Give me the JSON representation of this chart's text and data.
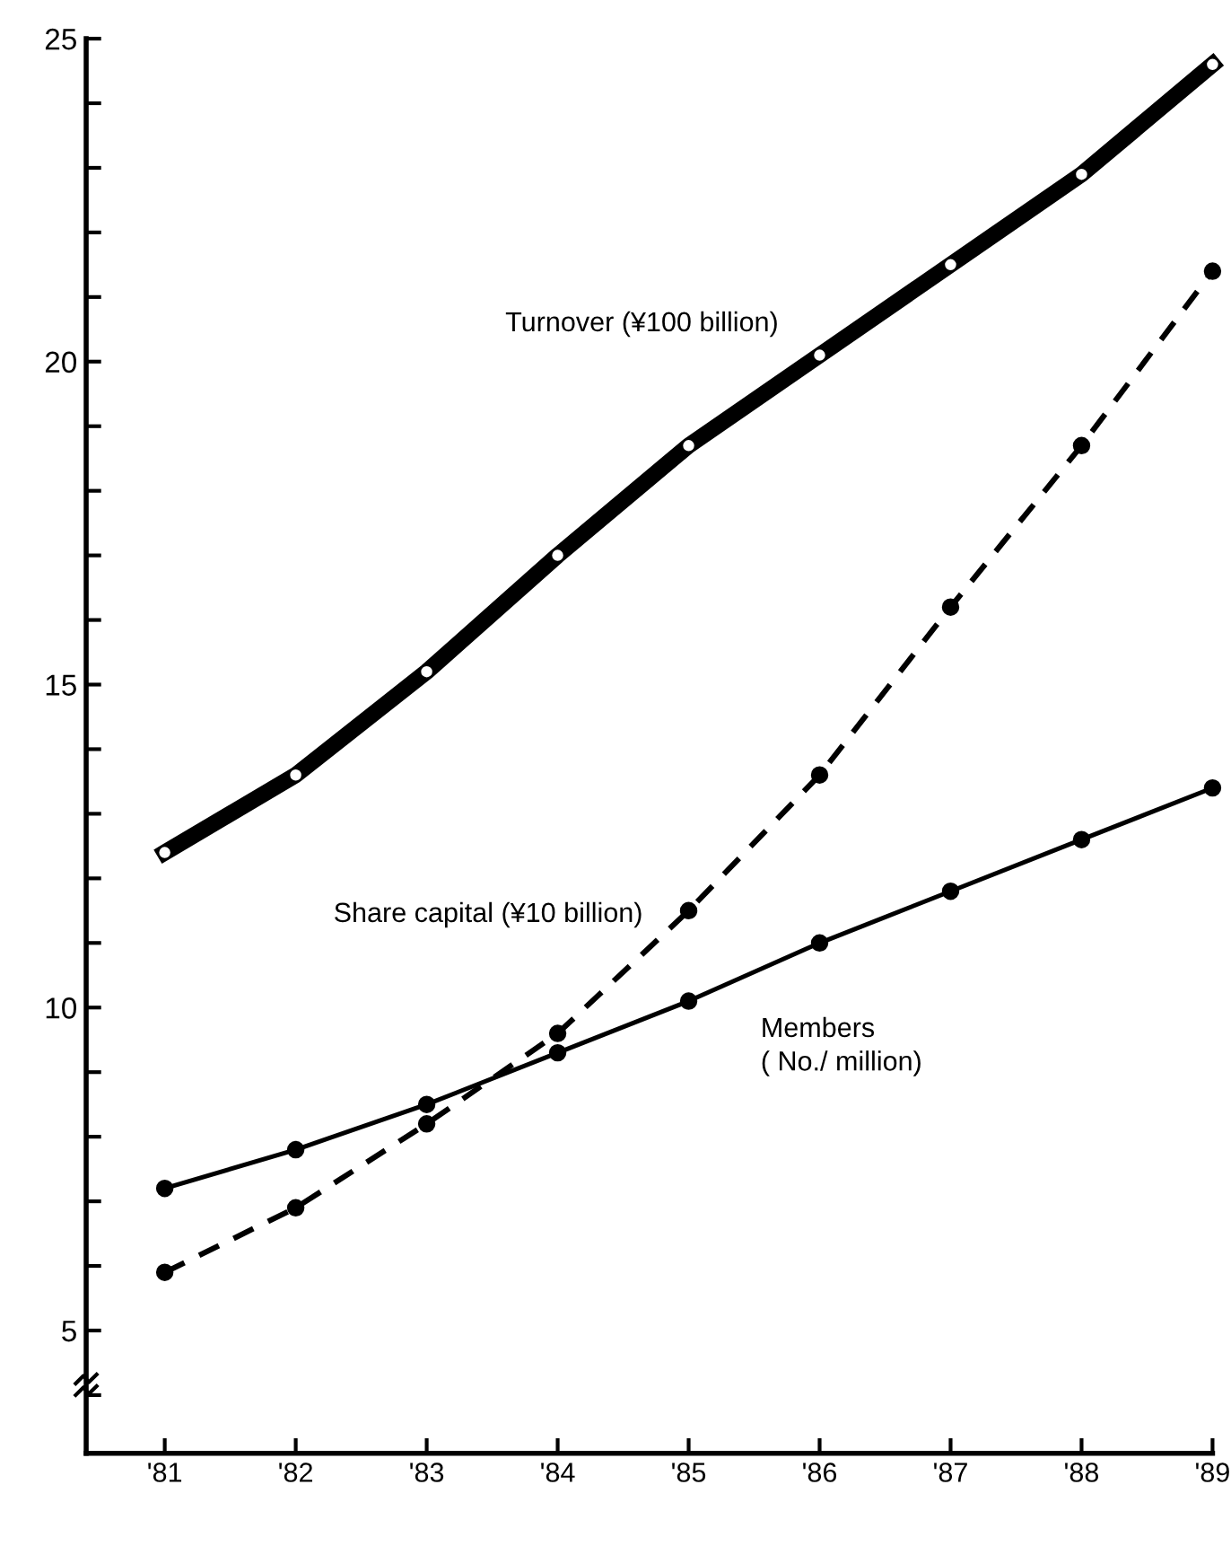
{
  "chart_data": {
    "type": "line",
    "categories": [
      "'81",
      "'82",
      "'83",
      "'84",
      "'85",
      "'86",
      "'87",
      "'88",
      "'89"
    ],
    "series": [
      {
        "name": "Turnover (¥100 billion)",
        "color": "#000000",
        "line_style": "solid",
        "marker": "circle",
        "values": [
          12.4,
          13.6,
          15.2,
          17.0,
          18.7,
          20.1,
          21.5,
          22.9,
          24.6
        ]
      },
      {
        "name": "Share capital (¥10 billion)",
        "color": "#000000",
        "line_style": "dashed",
        "marker": "circle",
        "values": [
          5.9,
          6.9,
          8.2,
          9.6,
          11.5,
          13.6,
          16.2,
          18.7,
          21.4
        ]
      },
      {
        "name": "Members\n( No./ million)",
        "color": "#000000",
        "line_style": "solid",
        "marker": "circle",
        "values": [
          7.2,
          7.8,
          8.5,
          9.3,
          10.1,
          11.0,
          11.8,
          12.6,
          13.4
        ]
      }
    ],
    "ylim": [
      3.1,
      25
    ],
    "yticks": [
      {
        "value": 4,
        "label": null
      },
      5,
      {
        "value": 6,
        "label": null
      },
      {
        "value": 7,
        "label": null
      },
      {
        "value": 8,
        "label": null
      },
      {
        "value": 9,
        "label": null
      },
      10,
      {
        "value": 11,
        "label": null
      },
      {
        "value": 12,
        "label": null
      },
      {
        "value": 13,
        "label": null
      },
      {
        "value": 14,
        "label": null
      },
      15,
      {
        "value": 16,
        "label": null
      },
      {
        "value": 17,
        "label": null
      },
      {
        "value": 18,
        "label": null
      },
      {
        "value": 19,
        "label": null
      },
      20,
      {
        "value": 21,
        "label": null
      },
      {
        "value": 22,
        "label": null
      },
      {
        "value": 23,
        "label": null
      },
      {
        "value": 24,
        "label": null
      },
      25
    ],
    "grid": false,
    "legend": false
  }
}
